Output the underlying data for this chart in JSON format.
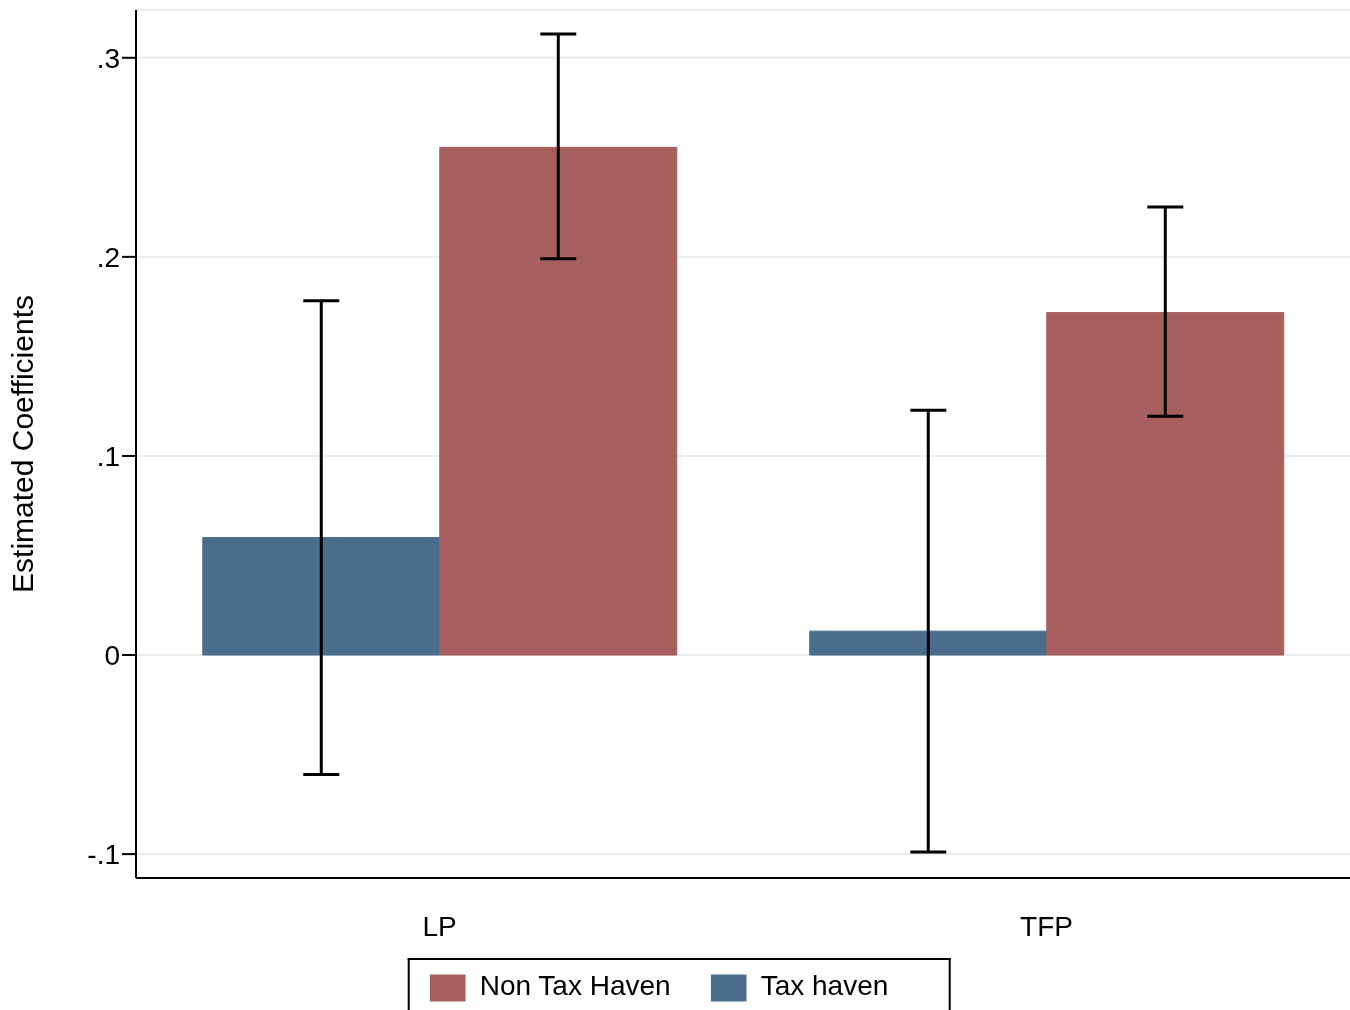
{
  "chart_data": {
    "type": "bar",
    "ylabel": "Estimated Coefficients",
    "categories": [
      "LP",
      "TFP"
    ],
    "series": [
      {
        "name": "Tax haven",
        "color": "#4a6d8c",
        "values": [
          0.059,
          0.012
        ],
        "errors": [
          [
            -0.06,
            0.178
          ],
          [
            -0.099,
            0.123
          ]
        ]
      },
      {
        "name": "Non Tax Haven",
        "color": "#a65e5e",
        "values": [
          0.255,
          0.172
        ],
        "errors": [
          [
            0.199,
            0.312
          ],
          [
            0.12,
            0.225
          ]
        ]
      }
    ],
    "ylim": [
      -0.112,
      0.324
    ],
    "yticks": [
      {
        "value": -0.1,
        "label": "-.1"
      },
      {
        "value": 0,
        "label": "0"
      },
      {
        "value": 0.1,
        "label": ".1"
      },
      {
        "value": 0.2,
        "label": ".2"
      },
      {
        "value": 0.3,
        "label": ".3"
      }
    ],
    "grid": "y",
    "legend": "bottom"
  }
}
